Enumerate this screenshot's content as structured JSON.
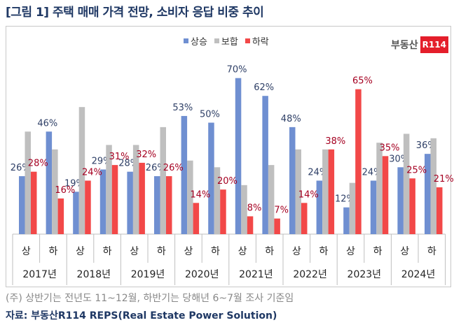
{
  "title": "[그림 1] 주택 매매 가격 전망, 소비자 응답 비중 추이",
  "logo": {
    "text": "부동산",
    "badge": "R114"
  },
  "chart_data": {
    "type": "bar",
    "categories": [
      "상",
      "하",
      "상",
      "하",
      "상",
      "하",
      "상",
      "하",
      "상",
      "하",
      "상",
      "하",
      "상",
      "하",
      "상",
      "하"
    ],
    "years": [
      "2017년",
      "2018년",
      "2019년",
      "2020년",
      "2021년",
      "2022년",
      "2023년",
      "2024년"
    ],
    "series": [
      {
        "name": "상승",
        "color": "#6f8fd1",
        "labels": true,
        "label_color": "#2e3f66",
        "values": [
          26,
          46,
          19,
          29,
          28,
          26,
          53,
          50,
          70,
          62,
          48,
          24,
          12,
          24,
          30,
          36
        ]
      },
      {
        "name": "보합",
        "color": "#bfbfbf",
        "labels": false,
        "values": [
          46,
          38,
          57,
          40,
          40,
          48,
          33,
          30,
          22,
          31,
          38,
          38,
          23,
          41,
          45,
          43
        ]
      },
      {
        "name": "하락",
        "color": "#f24848",
        "labels": true,
        "label_color": "#a50021",
        "values": [
          28,
          16,
          24,
          31,
          32,
          26,
          14,
          20,
          8,
          7,
          14,
          38,
          65,
          35,
          25,
          21
        ]
      }
    ],
    "ylim": [
      0,
      75
    ],
    "grid": false,
    "legend": "top"
  },
  "note": "(주) 상반기는 전년도 11~12월, 하반기는 당해년 6~7월 조사 기준임",
  "source": "자료: 부동산R114 REPS(Real Estate Power Solution)"
}
